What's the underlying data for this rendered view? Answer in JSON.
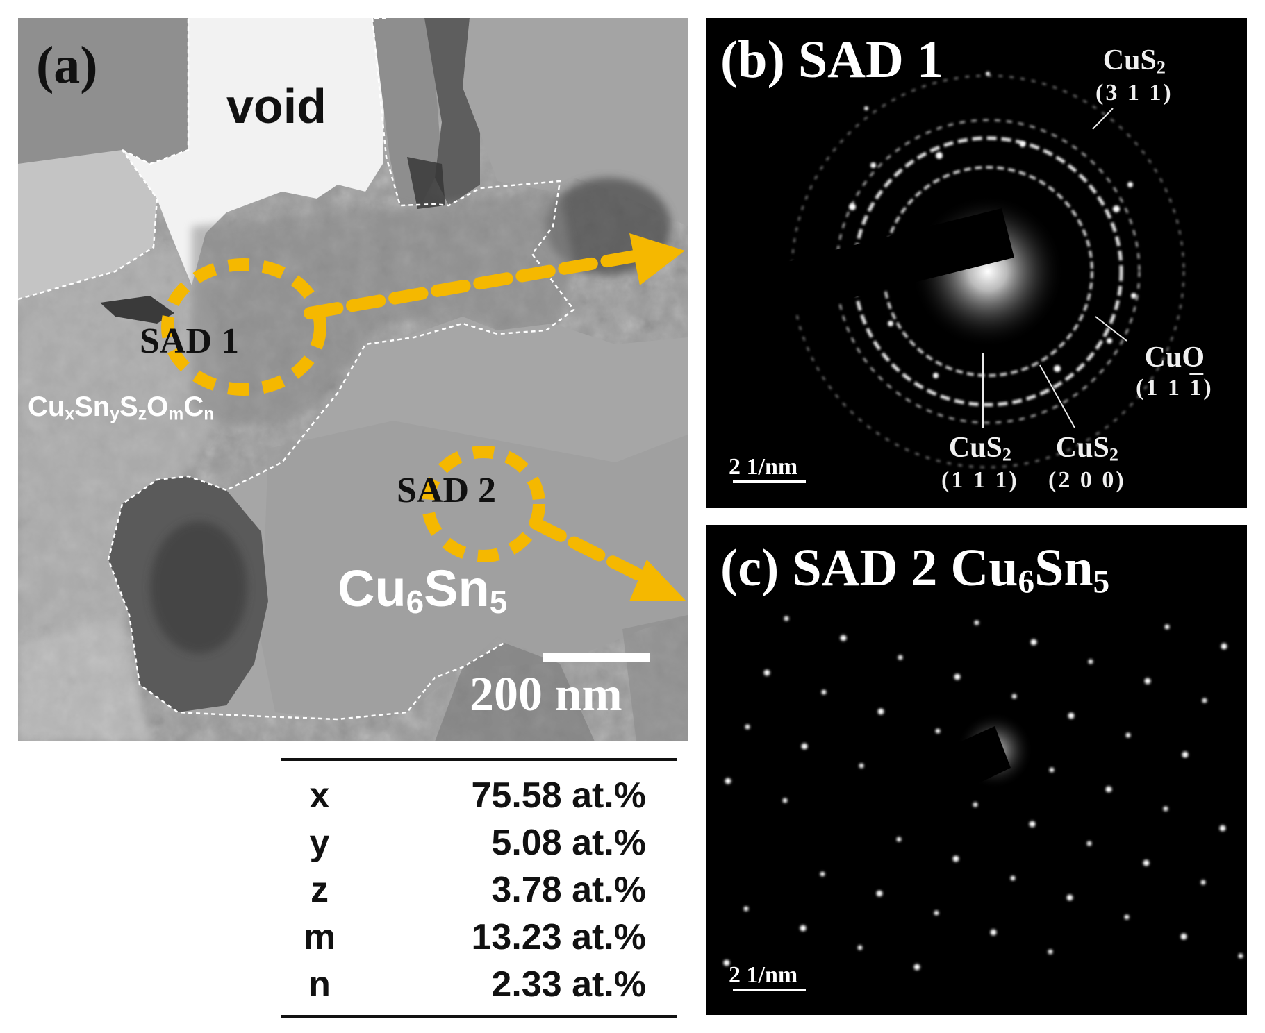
{
  "figure": {
    "panel_a": {
      "label": "(a)",
      "void_label": "void",
      "sad1_label": "SAD 1",
      "sad2_label": "SAD 2",
      "phase_label_main": "Cu",
      "phase_label_parts": [
        "x",
        "Sn",
        "y",
        "S",
        "z",
        "O",
        "m",
        "C",
        "n"
      ],
      "cu6sn5": {
        "a": "Cu",
        "b": "6",
        "c": "Sn",
        "d": "5"
      },
      "scale_bar": "200 nm",
      "accent_color": "#f5b800"
    },
    "panel_b": {
      "title": "(b) SAD 1",
      "scale": "2 1/nm",
      "rings": [
        {
          "name_main": "CuS",
          "name_sub": "2",
          "hkl": "(3 1 1)"
        },
        {
          "name_main": "CuO",
          "name_sub": "",
          "hkl_a": "(1 1 ",
          "hkl_bar": "1",
          "hkl_b": ")"
        },
        {
          "name_main": "CuS",
          "name_sub": "2",
          "hkl": "(1 1 1)"
        },
        {
          "name_main": "CuS",
          "name_sub": "2",
          "hkl": "(2 0 0)"
        }
      ]
    },
    "panel_c": {
      "title_a": "(c) SAD 2   Cu",
      "title_sub1": "6",
      "title_b": "Sn",
      "title_sub2": "5",
      "scale": "2 1/nm"
    },
    "composition": [
      {
        "var": "x",
        "value": "75.58 at.%"
      },
      {
        "var": "y",
        "value": "5.08 at.%"
      },
      {
        "var": "z",
        "value": "3.78 at.%"
      },
      {
        "var": "m",
        "value": "13.23 at.%"
      },
      {
        "var": "n",
        "value": "2.33 at.%"
      }
    ]
  }
}
